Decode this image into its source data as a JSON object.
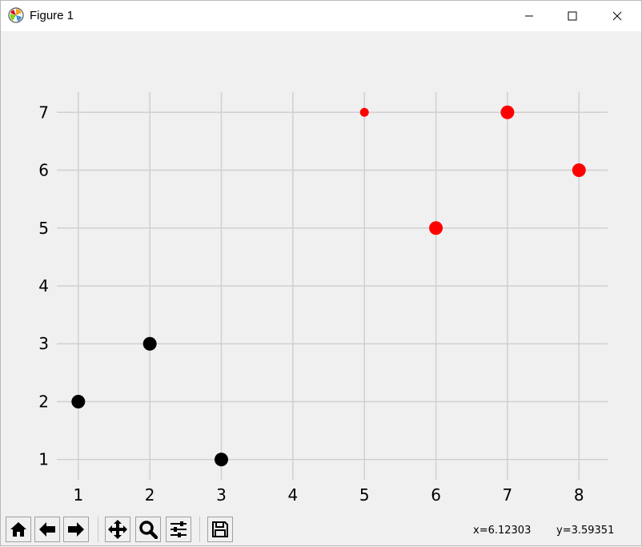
{
  "window": {
    "title": "Figure 1",
    "icons": {
      "app": "matplotlib-icon",
      "minimize": "minimize-icon",
      "maximize": "maximize-icon",
      "close": "close-icon"
    }
  },
  "chart_data": {
    "type": "scatter",
    "title": "",
    "xlabel": "",
    "ylabel": "",
    "xlim": [
      0.7,
      8.4
    ],
    "ylim": [
      0.65,
      7.35
    ],
    "xticks": [
      1,
      2,
      3,
      4,
      5,
      6,
      7,
      8
    ],
    "yticks": [
      1,
      2,
      3,
      4,
      5,
      6,
      7
    ],
    "grid": true,
    "series": [
      {
        "color": "#000000",
        "points": [
          {
            "x": 1,
            "y": 2,
            "size": "large"
          },
          {
            "x": 2,
            "y": 3,
            "size": "large"
          },
          {
            "x": 3,
            "y": 1,
            "size": "large"
          }
        ]
      },
      {
        "color": "#ff0000",
        "points": [
          {
            "x": 5,
            "y": 7,
            "size": "small"
          },
          {
            "x": 6,
            "y": 5,
            "size": "large"
          },
          {
            "x": 7,
            "y": 7,
            "size": "large"
          },
          {
            "x": 8,
            "y": 6,
            "size": "large"
          }
        ]
      }
    ]
  },
  "toolbar": {
    "buttons": [
      "home-icon",
      "back-icon",
      "forward-icon",
      "pan-icon",
      "zoom-icon",
      "configure-subplots-icon",
      "save-icon"
    ],
    "x_readout": "x=6.12303",
    "y_readout": "y=3.59351"
  }
}
